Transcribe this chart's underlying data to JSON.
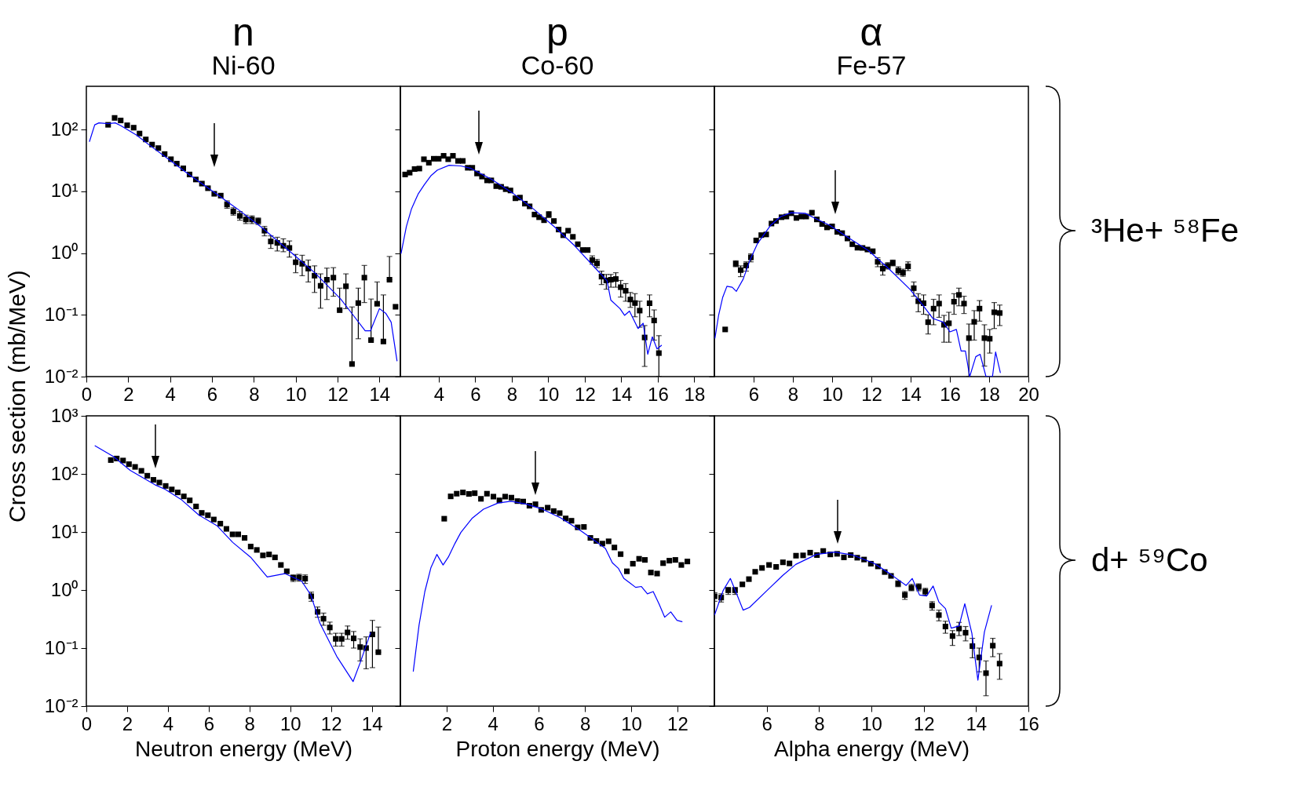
{
  "chart_data": [
    {
      "type": "scatter",
      "title": "n",
      "subtitle": "Ni-60",
      "log": true,
      "xlim": [
        0,
        15
      ],
      "xticks": [
        0,
        2,
        4,
        6,
        8,
        10,
        12,
        14
      ],
      "ylim": [
        0.01,
        500
      ],
      "yticks": [
        {
          "value": 0.01,
          "label": "10⁻²"
        },
        {
          "value": 0.1,
          "label": "10⁻¹"
        },
        {
          "value": 1,
          "label": "10⁰"
        },
        {
          "value": 10,
          "label": "10¹"
        },
        {
          "value": 100,
          "label": "10²"
        }
      ],
      "ylabel": "Cross section (mb/MeV)",
      "series": [
        {
          "color": "#000000",
          "marker": "square",
          "x": [
            1.04,
            1.35,
            1.64,
            1.95,
            2.26,
            2.54,
            2.84,
            3.14,
            3.44,
            3.74,
            4.04,
            4.32,
            4.63,
            4.93,
            5.23,
            5.52,
            5.81,
            6.11,
            6.42,
            6.72,
            7.02,
            7.33,
            7.62,
            7.91,
            8.21,
            8.51,
            8.81,
            9.12,
            9.41,
            9.7,
            10.0,
            10.31,
            10.6,
            10.9,
            11.19,
            11.49,
            11.8,
            12.1,
            12.4,
            12.69,
            12.99,
            13.28,
            13.6,
            13.89,
            14.19,
            14.48,
            14.77
          ],
          "values": [
            119,
            154,
            140,
            117,
            107,
            86,
            69,
            57,
            50,
            40,
            33,
            28,
            23.5,
            18.7,
            15.5,
            13.3,
            11.2,
            9.1,
            8.5,
            6.1,
            4.7,
            4.0,
            3.5,
            3.5,
            3.3,
            2.3,
            1.54,
            1.46,
            1.31,
            1.21,
            0.71,
            0.67,
            0.56,
            0.43,
            0.295,
            0.37,
            0.4,
            0.119,
            0.29,
            0.016,
            0.155,
            0.4,
            0.039,
            0.151,
            0.037,
            0.37,
            0.135
          ],
          "errors": [
            null,
            null,
            null,
            null,
            null,
            null,
            null,
            null,
            null,
            null,
            null,
            null,
            null,
            null,
            null,
            null,
            null,
            null,
            null,
            [
              5.3,
              7.0
            ],
            [
              4.1,
              5.4
            ],
            [
              3.4,
              4.7
            ],
            [
              3.0,
              4.1
            ],
            [
              3.0,
              4.0
            ],
            [
              2.9,
              3.7
            ],
            [
              1.9,
              2.7
            ],
            [
              1.19,
              1.9
            ],
            [
              1.08,
              1.8
            ],
            [
              1.05,
              1.7
            ],
            [
              0.86,
              1.57
            ],
            [
              0.48,
              0.95
            ],
            [
              0.43,
              0.92
            ],
            [
              0.34,
              0.77
            ],
            [
              0.23,
              0.62
            ],
            [
              0.128,
              0.46
            ],
            [
              0.177,
              0.57
            ],
            [
              0.2,
              0.58
            ],
            [
              0.119,
              0.27
            ],
            [
              0.126,
              0.46
            ],
            [
              0.016,
              0.134
            ],
            [
              0.041,
              0.27
            ],
            [
              0.158,
              0.63
            ],
            [
              0.039,
              0.18
            ],
            [
              0.151,
              0.34
            ],
            [
              0.037,
              0.21
            ],
            [
              0.37,
              0.88
            ],
            null
          ]
        },
        {
          "type": "line",
          "color": "#0000ff",
          "x": [
            0.15,
            0.4,
            0.6,
            1.04,
            1.38,
            1.65,
            2.4,
            3.01,
            3.88,
            4.74,
            5.98,
            7.21,
            8.44,
            9.68,
            10.91,
            12.15,
            12.64,
            13.32,
            13.57,
            14.0,
            14.31,
            14.56,
            14.84
          ],
          "values": [
            64,
            119,
            128,
            124,
            128,
            115,
            81,
            56,
            34,
            20.5,
            10.3,
            5.2,
            2.5,
            1.09,
            0.48,
            0.18,
            0.11,
            0.055,
            0.055,
            0.126,
            0.105,
            0.076,
            0.018
          ]
        }
      ]
    },
    {
      "type": "scatter",
      "title": "p",
      "subtitle": "Co-60",
      "log": true,
      "tick_labels": "x",
      "xlim": [
        1.9,
        19.1
      ],
      "xticks": [
        4,
        6,
        8,
        10,
        12,
        14,
        16,
        18
      ],
      "ylim": [
        0.01,
        500
      ],
      "yticks": [
        0.01,
        0.1,
        1,
        10,
        100
      ],
      "series": [
        {
          "color": "#000000",
          "marker": "square",
          "x": [
            2.16,
            2.41,
            2.68,
            2.94,
            3.19,
            3.46,
            3.73,
            4.0,
            4.27,
            4.52,
            4.78,
            5.06,
            5.32,
            5.59,
            5.84,
            6.1,
            6.37,
            6.65,
            6.88,
            7.15,
            7.42,
            7.67,
            7.93,
            8.2,
            8.45,
            8.72,
            8.98,
            9.25,
            9.5,
            9.77,
            10.03,
            10.31,
            10.57,
            10.82,
            11.09,
            11.35,
            11.62,
            11.89,
            12.16,
            12.41,
            12.67,
            12.92,
            13.18,
            13.43,
            13.7,
            13.97,
            14.24,
            14.5,
            14.75,
            15.01,
            15.28,
            15.55,
            15.8,
            16.06
          ],
          "values": [
            18.7,
            20,
            22.9,
            23.3,
            33,
            29,
            33.6,
            33.6,
            37.5,
            33,
            37.5,
            31,
            31,
            24,
            24,
            19.4,
            17.3,
            15,
            15,
            12.1,
            11.8,
            10.8,
            10.3,
            7.7,
            7.9,
            6.3,
            5.7,
            4.2,
            3.8,
            3.4,
            4.2,
            3.3,
            2.4,
            1.94,
            2.3,
            1.83,
            1.39,
            1.12,
            1.12,
            0.77,
            0.68,
            0.415,
            0.36,
            0.37,
            0.38,
            0.28,
            0.245,
            0.177,
            0.155,
            0.117,
            0.043,
            0.154,
            0.081,
            0.024
          ],
          "errors": [
            null,
            null,
            null,
            null,
            null,
            null,
            null,
            null,
            null,
            null,
            null,
            null,
            null,
            null,
            null,
            null,
            null,
            null,
            null,
            null,
            null,
            null,
            null,
            null,
            null,
            null,
            null,
            null,
            null,
            null,
            [
              3.75,
              4.7
            ],
            null,
            null,
            null,
            null,
            null,
            null,
            null,
            null,
            [
              0.66,
              0.9
            ],
            [
              0.58,
              0.79
            ],
            [
              0.31,
              0.51
            ],
            [
              0.26,
              0.45
            ],
            [
              0.28,
              0.45
            ],
            [
              0.28,
              0.48
            ],
            [
              0.194,
              0.36
            ],
            [
              0.166,
              0.32
            ],
            [
              0.132,
              0.23
            ],
            [
              0.093,
              0.22
            ],
            [
              0.063,
              0.166
            ],
            [
              0.0146,
              0.067
            ],
            [
              0.093,
              0.21
            ],
            [
              0.039,
              0.12
            ],
            [
              0.01,
              0.046
            ]
          ]
        },
        {
          "type": "line",
          "color": "#0000ff",
          "x": [
            1.94,
            2.23,
            2.51,
            2.87,
            3.22,
            3.57,
            3.93,
            4.57,
            5.21,
            5.77,
            6.91,
            8.04,
            9.18,
            10.31,
            11.45,
            12.58,
            13.22,
            13.43,
            13.93,
            14.18,
            14.45,
            14.92,
            15.2,
            15.45,
            15.7,
            15.96,
            16.2
          ],
          "values": [
            0.99,
            2.7,
            5.2,
            9.0,
            12.9,
            17.8,
            22,
            26.4,
            25.7,
            23.4,
            15.5,
            9.4,
            5.2,
            2.7,
            1.31,
            0.57,
            0.355,
            0.173,
            0.126,
            0.098,
            0.115,
            0.06,
            0.073,
            0.023,
            0.044,
            0.028,
            0.032
          ]
        }
      ]
    },
    {
      "type": "scatter",
      "title": "α",
      "subtitle": "Fe-57",
      "log": true,
      "tick_labels": "x",
      "xlim": [
        4,
        20
      ],
      "xticks": [
        6,
        8,
        10,
        12,
        14,
        16,
        18,
        20
      ],
      "ylim": [
        0.01,
        500
      ],
      "yticks": [
        0.01,
        0.1,
        1,
        10,
        100
      ],
      "annotations": [
        "³He+ ⁵⁸Fe"
      ],
      "series": [
        {
          "color": "#000000",
          "marker": "square",
          "x": [
            4.55,
            5.09,
            5.34,
            5.62,
            5.86,
            6.13,
            6.39,
            6.64,
            6.91,
            7.14,
            7.42,
            7.67,
            7.92,
            8.18,
            8.43,
            8.68,
            8.97,
            9.22,
            9.49,
            9.74,
            10.0,
            10.26,
            10.51,
            10.78,
            11.03,
            11.29,
            11.55,
            11.8,
            12.07,
            12.32,
            12.58,
            12.84,
            13.09,
            13.37,
            13.61,
            13.87,
            14.16,
            14.39,
            14.66,
            14.89,
            15.17,
            15.45,
            15.7,
            15.95,
            16.21,
            16.46,
            16.72,
            16.97,
            17.24,
            17.51,
            17.76,
            18.03,
            18.26,
            18.54
          ],
          "values": [
            0.058,
            0.67,
            0.53,
            0.63,
            0.85,
            1.6,
            1.95,
            2.0,
            3.0,
            3.3,
            3.8,
            3.9,
            4.4,
            3.7,
            3.9,
            3.9,
            4.5,
            3.5,
            2.95,
            2.6,
            2.7,
            2.2,
            2.1,
            1.72,
            1.39,
            1.22,
            1.21,
            1.14,
            1.07,
            0.72,
            0.56,
            0.62,
            0.69,
            0.52,
            0.48,
            0.61,
            0.27,
            0.166,
            0.154,
            0.076,
            0.126,
            0.152,
            0.069,
            0.073,
            0.163,
            0.21,
            0.152,
            0.042,
            0.077,
            0.126,
            0.042,
            0.041,
            0.11,
            0.107
          ],
          "errors": [
            null,
            [
              0.6,
              0.75
            ],
            [
              0.415,
              0.62
            ],
            [
              0.51,
              0.72
            ],
            [
              0.72,
              0.97
            ],
            null,
            null,
            null,
            null,
            null,
            null,
            null,
            null,
            null,
            null,
            null,
            null,
            null,
            null,
            null,
            null,
            null,
            null,
            null,
            null,
            null,
            null,
            null,
            null,
            [
              0.6,
              0.84
            ],
            [
              0.44,
              0.66
            ],
            [
              0.55,
              0.7
            ],
            [
              0.62,
              0.77
            ],
            [
              0.45,
              0.6
            ],
            [
              0.42,
              0.55
            ],
            [
              0.52,
              0.72
            ],
            [
              0.2,
              0.34
            ],
            [
              0.112,
              0.22
            ],
            [
              0.102,
              0.21
            ],
            [
              0.049,
              0.1
            ],
            [
              0.069,
              0.178
            ],
            [
              0.091,
              0.21
            ],
            [
              0.036,
              0.098
            ],
            [
              0.036,
              0.11
            ],
            [
              0.102,
              0.22
            ],
            [
              0.14,
              0.27
            ],
            [
              0.105,
              0.2
            ],
            [
              0.01,
              0.071
            ],
            [
              0.039,
              0.117
            ],
            [
              0.079,
              0.17
            ],
            [
              0.0148,
              0.069
            ],
            [
              0.024,
              0.058
            ],
            [
              0.06,
              0.158
            ],
            [
              0.067,
              0.144
            ]
          ]
        },
        {
          "type": "line",
          "color": "#0000ff",
          "x": [
            4.03,
            4.22,
            4.42,
            4.64,
            4.91,
            5.12,
            5.47,
            5.8,
            6.2,
            6.86,
            7.38,
            7.91,
            8.63,
            9.09,
            9.88,
            10.8,
            11.86,
            12.91,
            13.96,
            14.62,
            15.14,
            15.67,
            16.0,
            16.33,
            16.57,
            16.79,
            17.01,
            17.32,
            17.54,
            17.84,
            18.17,
            18.33,
            18.57
          ],
          "values": [
            0.042,
            0.1,
            0.19,
            0.29,
            0.28,
            0.24,
            0.38,
            0.75,
            1.43,
            2.8,
            3.9,
            4.5,
            4.4,
            3.7,
            2.8,
            1.8,
            1.09,
            0.55,
            0.26,
            0.144,
            0.087,
            0.076,
            0.053,
            0.058,
            0.026,
            0.026,
            0.01,
            0.021,
            0.023,
            0.01,
            0.01,
            0.025,
            0.0116
          ]
        }
      ]
    },
    {
      "type": "scatter",
      "xlabel": "Neutron energy  (MeV)",
      "log": true,
      "xlim": [
        0,
        15.4
      ],
      "xticks": [
        0,
        2,
        4,
        6,
        8,
        10,
        12,
        14
      ],
      "ylim": [
        0.01,
        1000
      ],
      "yticks": [
        {
          "value": 0.01,
          "label": "10⁻²"
        },
        {
          "value": 0.1,
          "label": "10⁻¹"
        },
        {
          "value": 1,
          "label": "10⁰"
        },
        {
          "value": 10,
          "label": "10¹"
        },
        {
          "value": 100,
          "label": "10²"
        },
        {
          "value": 1000,
          "label": "10³"
        }
      ],
      "series": [
        {
          "color": "#000000",
          "marker": "square",
          "x": [
            1.2,
            1.49,
            1.8,
            2.09,
            2.39,
            2.7,
            2.99,
            3.29,
            3.58,
            3.89,
            4.19,
            4.48,
            4.78,
            5.07,
            5.38,
            5.66,
            5.96,
            6.25,
            6.57,
            6.87,
            7.17,
            7.45,
            7.76,
            8.06,
            8.36,
            8.66,
            8.96,
            9.25,
            9.54,
            9.83,
            10.14,
            10.43,
            10.73,
            11.03,
            11.34,
            11.63,
            11.94,
            12.23,
            12.52,
            12.81,
            13.11,
            13.43,
            13.72,
            14.03,
            14.32
          ],
          "values": [
            173,
            184,
            170,
            147,
            132,
            113,
            93,
            79,
            71,
            62,
            54,
            48,
            41,
            35,
            27.5,
            21.3,
            19.4,
            16.4,
            13.9,
            11.3,
            9.1,
            9.1,
            7.9,
            5.6,
            4.9,
            3.95,
            4.1,
            3.65,
            2.7,
            2.1,
            1.62,
            1.64,
            1.57,
            0.78,
            0.42,
            0.32,
            0.226,
            0.144,
            0.144,
            0.186,
            0.147,
            0.104,
            0.1,
            0.172,
            0.085
          ],
          "errors": [
            null,
            null,
            null,
            null,
            null,
            null,
            null,
            null,
            null,
            null,
            null,
            null,
            null,
            null,
            null,
            null,
            null,
            null,
            null,
            null,
            null,
            null,
            null,
            null,
            null,
            null,
            null,
            null,
            null,
            null,
            [
              1.4,
              1.82
            ],
            [
              1.42,
              1.87
            ],
            [
              1.3,
              1.82
            ],
            [
              0.64,
              0.92
            ],
            [
              0.34,
              0.51
            ],
            [
              0.247,
              0.4
            ],
            [
              0.175,
              0.28
            ],
            [
              0.108,
              0.18
            ],
            [
              0.108,
              0.18
            ],
            [
              0.142,
              0.24
            ],
            [
              0.1,
              0.193
            ],
            [
              0.06,
              0.144
            ],
            [
              0.044,
              0.156
            ],
            [
              0.046,
              0.3
            ],
            [
              0.085,
              0.23
            ]
          ]
        },
        {
          "type": "line",
          "color": "#0000ff",
          "x": [
            0.43,
            1.32,
            2.15,
            3.36,
            3.87,
            4.64,
            5.53,
            6.42,
            7.18,
            8.08,
            8.87,
            9.73,
            10.56,
            11.01,
            11.45,
            12.28,
            13.08,
            13.43,
            13.94
          ],
          "values": [
            305,
            200,
            115,
            65,
            54,
            36.5,
            19.4,
            12.7,
            6.6,
            3.6,
            1.68,
            1.92,
            1.42,
            0.82,
            0.27,
            0.072,
            0.0265,
            0.056,
            0.184
          ]
        }
      ]
    },
    {
      "type": "scatter",
      "xlabel": "Proton energy (MeV)",
      "log": true,
      "tick_labels": "x",
      "xlim": [
        0,
        13.6
      ],
      "xticks": [
        2,
        4,
        6,
        8,
        10,
        12
      ],
      "ylim": [
        0.01,
        1000
      ],
      "yticks": [
        0.01,
        0.1,
        1,
        10,
        100,
        1000
      ],
      "series": [
        {
          "color": "#000000",
          "marker": "square",
          "x": [
            1.9,
            2.18,
            2.44,
            2.71,
            2.97,
            3.22,
            3.49,
            3.75,
            4.03,
            4.29,
            4.54,
            4.81,
            5.07,
            5.32,
            5.59,
            5.85,
            6.1,
            6.38,
            6.64,
            6.9,
            7.16,
            7.41,
            7.68,
            7.95,
            8.23,
            8.49,
            8.75,
            9.02,
            9.27,
            9.54,
            9.81,
            10.07,
            10.34,
            10.59,
            10.85,
            11.12,
            11.38,
            11.65,
            11.91,
            12.17,
            12.43
          ],
          "values": [
            16.9,
            41,
            45.6,
            47.9,
            45.2,
            46.5,
            37.2,
            45.6,
            40.6,
            35,
            40.6,
            39,
            34,
            33.4,
            28.3,
            30,
            24,
            26.2,
            22.9,
            21.1,
            17.1,
            15.6,
            12,
            12.2,
            7.9,
            7.0,
            6.3,
            6.9,
            5.4,
            4.15,
            2.1,
            2.84,
            3.45,
            3.3,
            2.0,
            1.92,
            2.9,
            3.2,
            3.3,
            2.7,
            3.1
          ]
        },
        {
          "type": "line",
          "color": "#0000ff",
          "x": [
            0.56,
            0.81,
            1.06,
            1.32,
            1.58,
            1.85,
            2.08,
            2.36,
            2.62,
            3.1,
            3.6,
            4.23,
            4.79,
            5.47,
            6.15,
            6.94,
            7.84,
            8.52,
            8.88,
            9.18,
            9.45,
            9.68,
            9.93,
            10.19,
            10.44,
            10.7,
            10.95,
            11.2,
            11.45,
            11.71,
            11.98,
            12.2
          ],
          "values": [
            0.04,
            0.25,
            0.94,
            2.4,
            4.1,
            2.7,
            3.7,
            6.3,
            9.8,
            17.1,
            24.7,
            31.5,
            33.7,
            30,
            24.7,
            17.5,
            10.3,
            6.6,
            5.2,
            2.95,
            2.34,
            1.58,
            1.33,
            1.11,
            1.15,
            0.86,
            0.94,
            0.58,
            0.34,
            0.42,
            0.3,
            0.285
          ]
        }
      ]
    },
    {
      "type": "scatter",
      "xlabel": "Alpha energy (MeV)",
      "log": true,
      "tick_labels": "x",
      "xlim": [
        4,
        16
      ],
      "xticks": [
        6,
        8,
        10,
        12,
        14,
        16
      ],
      "ylim": [
        0.01,
        1000
      ],
      "yticks": [
        0.01,
        0.1,
        1,
        10,
        100,
        1000
      ],
      "annotations": [
        "d+ ⁵⁹Co"
      ],
      "series": [
        {
          "color": "#000000",
          "marker": "square",
          "x": [
            4.01,
            4.26,
            4.53,
            4.79,
            5.07,
            5.32,
            5.56,
            5.82,
            6.09,
            6.36,
            6.62,
            6.87,
            7.12,
            7.39,
            7.66,
            7.92,
            8.16,
            8.43,
            8.69,
            8.95,
            9.21,
            9.46,
            9.72,
            9.98,
            10.25,
            10.51,
            10.75,
            11.02,
            11.28,
            11.53,
            11.81,
            12.06,
            12.32,
            12.58,
            12.83,
            13.1,
            13.35,
            13.6,
            13.86,
            14.12,
            14.38,
            14.64,
            14.9
          ],
          "values": [
            0.78,
            0.74,
            0.99,
            0.99,
            1.25,
            1.54,
            2.06,
            2.4,
            2.7,
            2.5,
            3.0,
            2.87,
            3.9,
            3.95,
            4.4,
            4.0,
            4.7,
            4.1,
            4.2,
            3.65,
            4.0,
            3.6,
            3.35,
            2.84,
            2.55,
            2.04,
            1.75,
            1.28,
            0.82,
            1.09,
            1.13,
            0.94,
            0.54,
            0.37,
            0.235,
            0.161,
            0.217,
            0.184,
            0.108,
            0.069,
            0.037,
            0.11,
            0.054
          ],
          "errors": [
            [
              0.64,
              0.9
            ],
            [
              0.62,
              0.86
            ],
            [
              0.84,
              1.11
            ],
            [
              0.84,
              1.11
            ],
            null,
            null,
            null,
            null,
            null,
            null,
            null,
            null,
            null,
            null,
            null,
            null,
            null,
            null,
            null,
            null,
            null,
            null,
            null,
            null,
            null,
            null,
            null,
            [
              1.14,
              1.44
            ],
            [
              0.69,
              0.94
            ],
            [
              0.97,
              1.25
            ],
            [
              0.97,
              1.28
            ],
            [
              0.82,
              1.07
            ],
            [
              0.45,
              0.63
            ],
            [
              0.294,
              0.45
            ],
            [
              0.18,
              0.29
            ],
            [
              0.111,
              0.2
            ],
            [
              0.164,
              0.277
            ],
            [
              0.133,
              0.235
            ],
            [
              0.068,
              0.147
            ],
            [
              0.039,
              0.1
            ],
            [
              0.0151,
              0.06
            ],
            [
              0.071,
              0.147
            ],
            [
              0.029,
              0.08
            ]
          ]
        },
        {
          "type": "line",
          "color": "#0000ff",
          "x": [
            4.01,
            4.34,
            4.61,
            4.85,
            5.1,
            5.34,
            6.02,
            6.61,
            7.11,
            7.9,
            8.6,
            9.29,
            10.09,
            10.67,
            11.33,
            11.56,
            11.84,
            12.11,
            12.36,
            12.58,
            12.83,
            13.05,
            13.35,
            13.57,
            13.84,
            14.07,
            14.32,
            14.59
          ],
          "values": [
            0.375,
            0.99,
            1.58,
            0.86,
            0.45,
            0.5,
            0.99,
            1.78,
            2.76,
            4.1,
            4.5,
            4.0,
            2.9,
            1.96,
            1.2,
            1.58,
            0.82,
            0.79,
            1.17,
            0.62,
            0.48,
            0.22,
            0.24,
            0.58,
            0.18,
            0.028,
            0.19,
            0.54
          ]
        }
      ]
    }
  ]
}
